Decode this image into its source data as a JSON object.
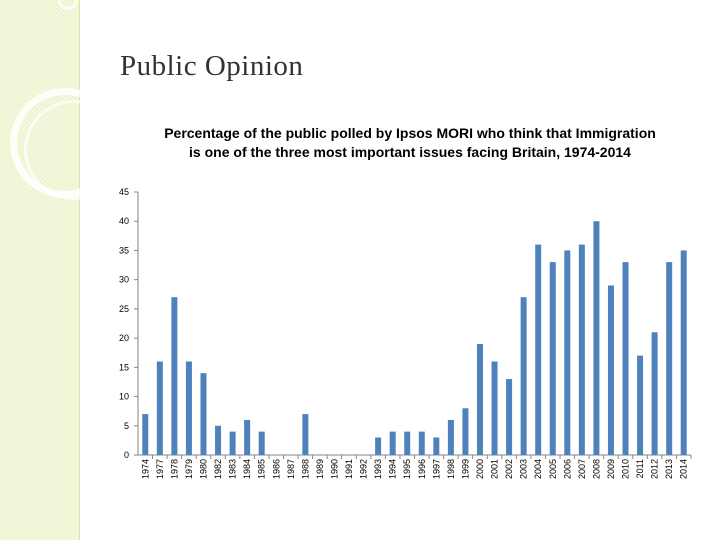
{
  "slide": {
    "title": "Public Opinion"
  },
  "colors": {
    "bar": "#4f81bd",
    "axis": "#868686",
    "side_band": "#eef4cf"
  },
  "chart_data": {
    "type": "bar",
    "title": "Percentage of the public polled by Ipsos MORI who think that Immigration is one of the three most important issues facing Britain, 1974-2014",
    "xlabel": "",
    "ylabel": "",
    "ylim": [
      0,
      45
    ],
    "yticks": [
      0,
      5,
      10,
      15,
      20,
      25,
      30,
      35,
      40,
      45
    ],
    "grid": false,
    "categories": [
      "1974",
      "1977",
      "1978",
      "1979",
      "1980",
      "1982",
      "1983",
      "1984",
      "1985",
      "1986",
      "1987",
      "1988",
      "1989",
      "1990",
      "1991",
      "1992",
      "1993",
      "1994",
      "1995",
      "1996",
      "1997",
      "1998",
      "1999",
      "2000",
      "2001",
      "2002",
      "2003",
      "2004",
      "2005",
      "2006",
      "2007",
      "2008",
      "2009",
      "2010",
      "2011",
      "2012",
      "2013",
      "2014"
    ],
    "values": [
      7,
      16,
      27,
      16,
      14,
      5,
      4,
      6,
      4,
      0,
      0,
      7,
      0,
      0,
      0,
      0,
      3,
      4,
      4,
      4,
      3,
      6,
      8,
      19,
      16,
      13,
      27,
      36,
      33,
      35,
      36,
      40,
      29,
      33,
      17,
      21,
      33,
      35
    ]
  }
}
